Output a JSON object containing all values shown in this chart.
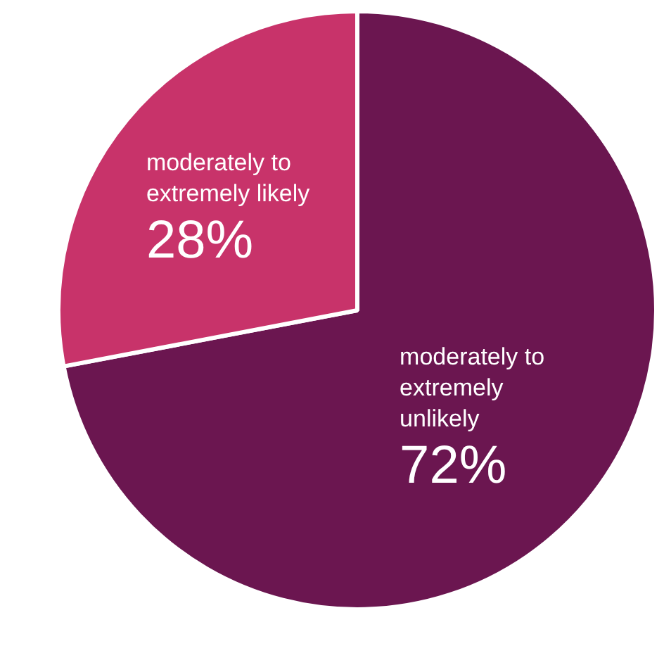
{
  "chart_data": {
    "type": "pie",
    "categories": [
      "moderately to extremely unlikely",
      "moderately to extremely likely"
    ],
    "values": [
      72,
      28
    ],
    "colors": [
      "#6b1650",
      "#c8336a"
    ],
    "value_labels": [
      "72%",
      "28%"
    ],
    "legend": false
  }
}
